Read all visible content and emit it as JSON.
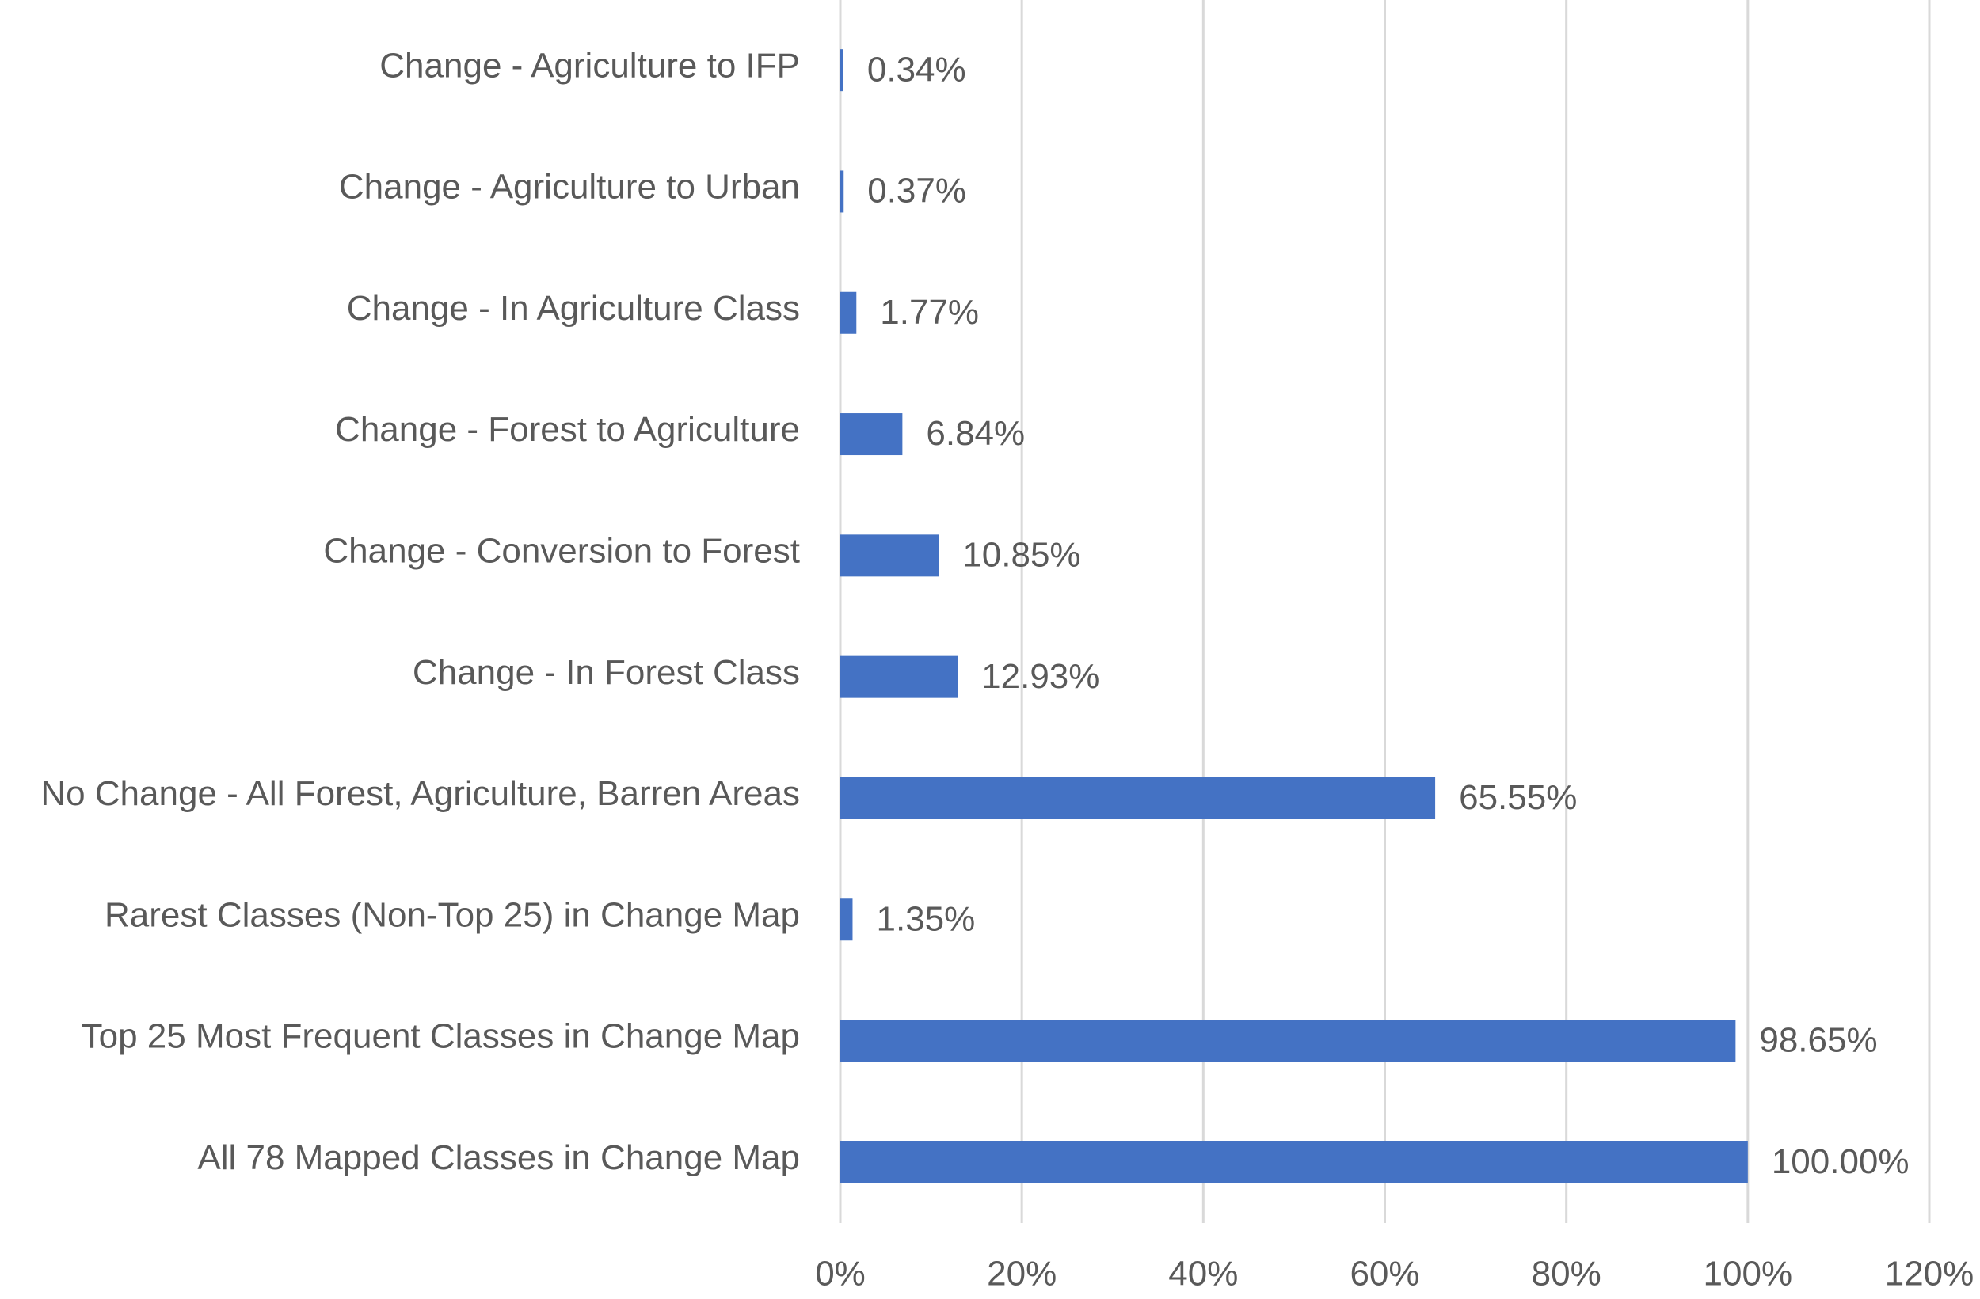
{
  "chart_data": {
    "type": "hbar",
    "categories": [
      "Change - Agriculture to IFP",
      "Change - Agriculture to Urban",
      "Change - In Agriculture Class",
      "Change - Forest to Agriculture",
      "Change - Conversion to Forest",
      "Change - In Forest Class",
      "No Change - All Forest, Agriculture, Barren Areas",
      "Rarest Classes (Non-Top 25) in Change Map",
      "Top 25 Most Frequent Classes in Change Map",
      "All 78 Mapped Classes in Change Map"
    ],
    "values": [
      0.34,
      0.37,
      1.77,
      6.84,
      10.85,
      12.93,
      65.55,
      1.35,
      98.65,
      100
    ],
    "value_labels": [
      "0.34%",
      "0.37%",
      "1.77%",
      "6.84%",
      "10.85%",
      "12.93%",
      "65.55%",
      "1.35%",
      "98.65%",
      "100.00%"
    ],
    "color": "#4472c4",
    "xlim": [
      0,
      120
    ],
    "xticks": [
      {
        "value": 0,
        "label": "0%"
      },
      {
        "value": 20,
        "label": "20%"
      },
      {
        "value": 40,
        "label": "40%"
      },
      {
        "value": 60,
        "label": "60%"
      },
      {
        "value": 80,
        "label": "80%"
      },
      {
        "value": 100,
        "label": "100%"
      },
      {
        "value": 120,
        "label": "120%"
      }
    ],
    "grid": true
  }
}
